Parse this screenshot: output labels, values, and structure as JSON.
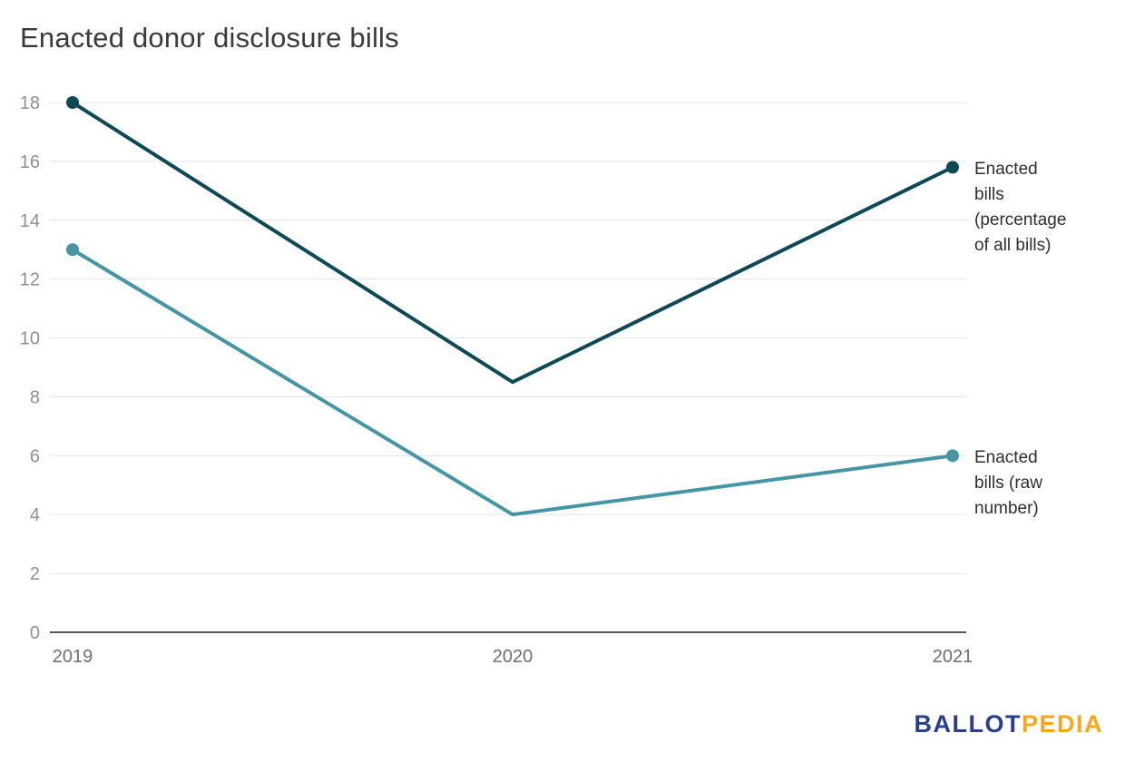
{
  "chart_data": {
    "type": "line",
    "title": "Enacted donor disclosure bills",
    "x": [
      "2019",
      "2020",
      "2021"
    ],
    "series": [
      {
        "name": "Enacted bills (percentage of all bills)",
        "label_lines": [
          "Enacted",
          "bills",
          "(percentage",
          "of all bills)"
        ],
        "color": "#0e4a56",
        "values": [
          18,
          8.5,
          15.8
        ]
      },
      {
        "name": "Enacted bills (raw number)",
        "label_lines": [
          "Enacted",
          "bills (raw",
          "number)"
        ],
        "color": "#4596a4",
        "values": [
          13,
          4,
          6
        ]
      }
    ],
    "xlabel": "",
    "ylabel": "",
    "ylim": [
      0,
      18
    ],
    "ytick_step": 2,
    "yticks": [
      0,
      2,
      4,
      6,
      8,
      10,
      12,
      14,
      16,
      18
    ],
    "grid": true,
    "grid_color": "#e4e4e4",
    "axis_color": "#222222",
    "ytick_color": "#8f8f8f",
    "xtick_color": "#6f6f6f",
    "legend_position": "right-of-line-end"
  },
  "branding": {
    "ballot": "BALLOT",
    "pedia": "PEDIA",
    "ballot_color": "#293e8e",
    "pedia_color": "#f9a61a"
  }
}
